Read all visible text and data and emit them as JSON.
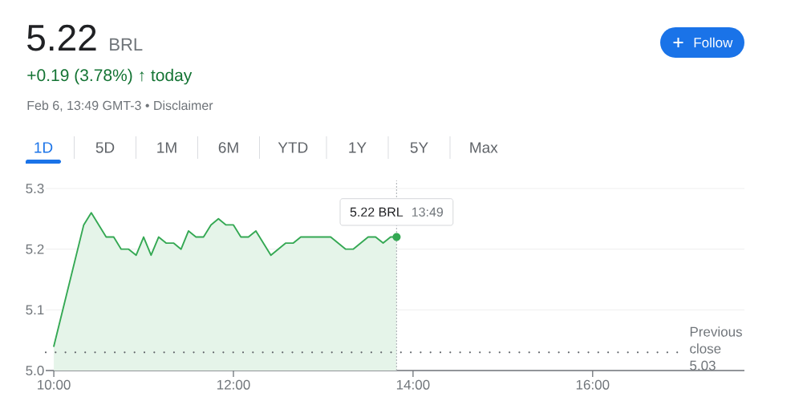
{
  "chart_data": {
    "type": "area",
    "title": "5.22",
    "subtitle": "+0.19 (3.78%) ↑ today",
    "x": [
      10,
      10.333,
      10.417,
      10.583,
      10.667,
      10.75,
      10.833,
      10.917,
      11,
      11.083,
      11.167,
      11.25,
      11.333,
      11.417,
      11.5,
      11.583,
      11.667,
      11.75,
      11.833,
      11.917,
      12,
      12.083,
      12.167,
      12.25,
      12.417,
      12.583,
      12.667,
      12.75,
      13.083,
      13.25,
      13.333,
      13.5,
      13.583,
      13.667,
      13.75,
      13.817
    ],
    "values": [
      5.04,
      5.24,
      5.26,
      5.22,
      5.22,
      5.2,
      5.2,
      5.19,
      5.22,
      5.19,
      5.22,
      5.21,
      5.21,
      5.2,
      5.23,
      5.22,
      5.22,
      5.24,
      5.25,
      5.24,
      5.24,
      5.22,
      5.22,
      5.23,
      5.19,
      5.21,
      5.21,
      5.22,
      5.22,
      5.2,
      5.2,
      5.22,
      5.22,
      5.21,
      5.22,
      5.22
    ],
    "color": "#34a853",
    "marker": "none",
    "xlim": [
      9.91,
      17.69
    ],
    "ylim": [
      5.0,
      5.3
    ],
    "xticks": [
      {
        "value": 10,
        "label": "10:00"
      },
      {
        "value": 12,
        "label": "12:00"
      },
      {
        "value": 14,
        "label": "14:00"
      },
      {
        "value": 16,
        "label": "16:00"
      }
    ],
    "yticks": [
      {
        "value": 5.0,
        "label": "5.0"
      },
      5.1,
      5.2,
      5.3
    ],
    "grid": "y",
    "ref_lines": [
      {
        "axis": "y",
        "value": 5.03,
        "label": "Previous close 5.03",
        "line_style": "dotted",
        "color": "#5f6368"
      },
      {
        "axis": "x",
        "value": 13.817,
        "line_style": "dotted",
        "color": "#b5b9be"
      }
    ],
    "annotations": [
      "BRL",
      "Feb 6, 13:49 GMT-3 • Disclaimer",
      "1D",
      "5D",
      "1M",
      "6M",
      "YTD",
      "1Y",
      "5Y",
      "Max",
      "Follow",
      {
        "text": "5.22 BRL",
        "x": 13.817,
        "y": 5.22
      },
      {
        "text": "13:49",
        "x": 13.817,
        "y": 5.22
      }
    ]
  }
}
